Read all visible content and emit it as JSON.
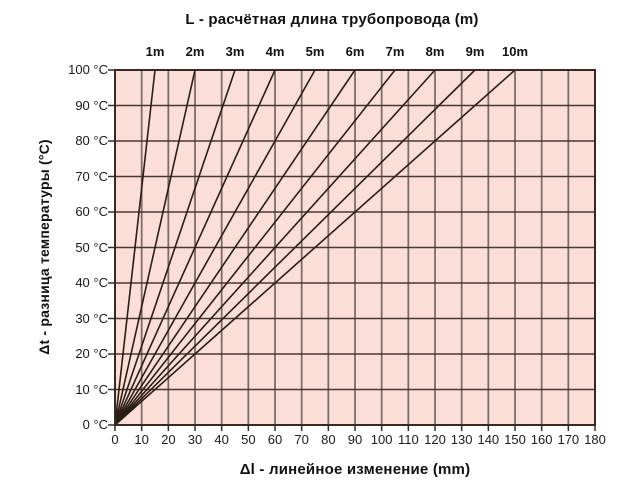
{
  "titles": {
    "top": "L - расчётная длина трубопровода (m)",
    "y_axis": "Δt - разница температуры (°C)",
    "x_axis": "Δl - линейное изменение (mm)"
  },
  "chart_data": {
    "type": "line",
    "title": "L - расчётная длина трубопровода (m)",
    "xlabel": "Δl - линейное изменение (mm)",
    "ylabel": "Δt - разница температуры (°C)",
    "xlim": [
      0,
      180
    ],
    "ylim": [
      0,
      100
    ],
    "x_ticks": [
      0,
      10,
      20,
      30,
      40,
      50,
      60,
      70,
      80,
      90,
      100,
      110,
      120,
      130,
      140,
      150,
      160,
      170,
      180
    ],
    "y_ticks": [
      0,
      10,
      20,
      30,
      40,
      50,
      60,
      70,
      80,
      90,
      100
    ],
    "y_tick_unit": "°C",
    "grid": true,
    "top_edge_labels": [
      "1m",
      "2m",
      "3m",
      "4m",
      "5m",
      "6m",
      "7m",
      "8m",
      "9m",
      "10m"
    ],
    "series": [
      {
        "name": "1m",
        "pipe_length_m": 1,
        "points": [
          [
            0,
            0
          ],
          [
            15,
            100
          ]
        ]
      },
      {
        "name": "2m",
        "pipe_length_m": 2,
        "points": [
          [
            0,
            0
          ],
          [
            30,
            100
          ]
        ]
      },
      {
        "name": "3m",
        "pipe_length_m": 3,
        "points": [
          [
            0,
            0
          ],
          [
            45,
            100
          ]
        ]
      },
      {
        "name": "4m",
        "pipe_length_m": 4,
        "points": [
          [
            0,
            0
          ],
          [
            60,
            100
          ]
        ]
      },
      {
        "name": "5m",
        "pipe_length_m": 5,
        "points": [
          [
            0,
            0
          ],
          [
            75,
            100
          ]
        ]
      },
      {
        "name": "6m",
        "pipe_length_m": 6,
        "points": [
          [
            0,
            0
          ],
          [
            90,
            100
          ]
        ]
      },
      {
        "name": "7m",
        "pipe_length_m": 7,
        "points": [
          [
            0,
            0
          ],
          [
            105,
            100
          ]
        ]
      },
      {
        "name": "8m",
        "pipe_length_m": 8,
        "points": [
          [
            0,
            0
          ],
          [
            120,
            100
          ]
        ]
      },
      {
        "name": "9m",
        "pipe_length_m": 9,
        "points": [
          [
            0,
            0
          ],
          [
            135,
            100
          ]
        ]
      },
      {
        "name": "10m",
        "pipe_length_m": 10,
        "points": [
          [
            0,
            0
          ],
          [
            150,
            100
          ]
        ]
      }
    ]
  },
  "colors": {
    "page_bg": "#ffffff",
    "plot_bg": "#fbdfd6",
    "grid_vertical": "#7d6c65",
    "grid_horizontal": "#4a372f",
    "border": "#382a22",
    "series_line": "#2b1d15",
    "text": "#111111"
  }
}
